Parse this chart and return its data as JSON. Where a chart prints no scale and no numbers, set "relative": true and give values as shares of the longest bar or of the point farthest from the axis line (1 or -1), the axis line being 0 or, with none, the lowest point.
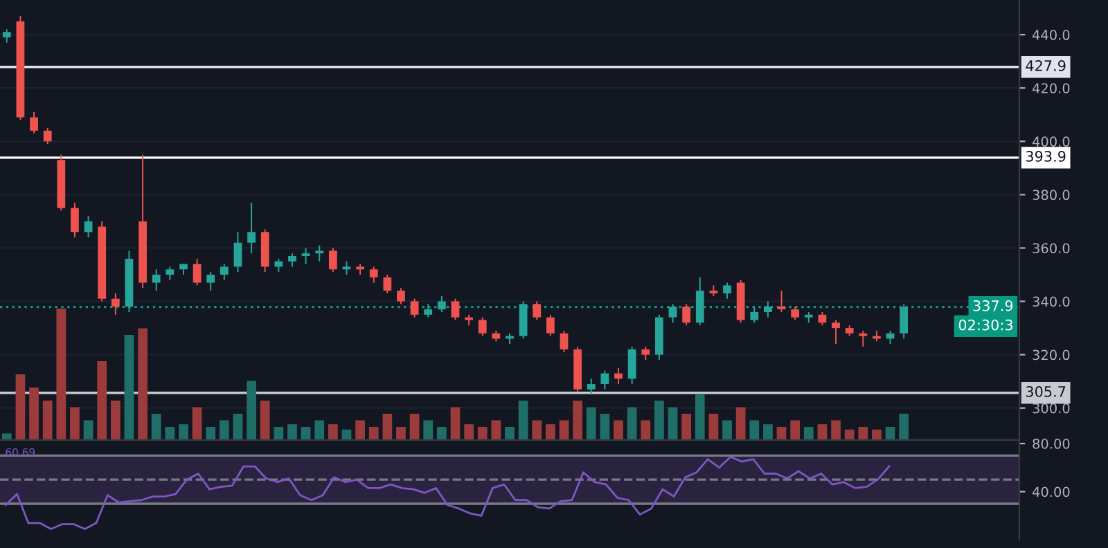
{
  "chart_data": [
    {
      "type": "candlestick",
      "categories": [
        null,
        null,
        null,
        null,
        null,
        null,
        null,
        null,
        null,
        null,
        null,
        null,
        null,
        null,
        null,
        null,
        null,
        null,
        null,
        null,
        null,
        null,
        null,
        null,
        null,
        null,
        null,
        null,
        null,
        null,
        null,
        null,
        null,
        null,
        null,
        null,
        null,
        null,
        null,
        null,
        null,
        null,
        null,
        null,
        null,
        null,
        null,
        null,
        null,
        null,
        null,
        null,
        null,
        null,
        null,
        null,
        null,
        null,
        null,
        null,
        null,
        null,
        null,
        null,
        null,
        null,
        null,
        null,
        null,
        null,
        null,
        null,
        null,
        null,
        null
      ],
      "ohlc": [
        [
          439,
          442,
          437,
          441
        ],
        [
          445,
          447,
          408,
          409
        ],
        [
          409,
          411,
          403,
          404
        ],
        [
          404,
          405,
          399,
          400
        ],
        [
          393,
          395,
          374,
          375
        ],
        [
          375,
          377,
          364,
          366
        ],
        [
          366,
          372,
          364,
          370
        ],
        [
          368,
          370,
          340,
          341
        ],
        [
          341,
          343,
          335,
          338
        ],
        [
          338,
          359,
          336,
          356
        ],
        [
          370,
          395,
          345,
          347
        ],
        [
          347,
          352,
          344,
          350
        ],
        [
          350,
          353,
          348,
          352
        ],
        [
          352,
          354,
          350,
          354
        ],
        [
          354,
          356,
          346,
          347
        ],
        [
          347,
          351,
          344,
          350
        ],
        [
          350,
          354,
          348,
          353
        ],
        [
          353,
          366,
          351,
          362
        ],
        [
          362,
          377,
          358,
          366
        ],
        [
          366,
          367,
          351,
          353
        ],
        [
          353,
          356,
          351,
          355
        ],
        [
          355,
          358,
          353,
          357
        ],
        [
          357,
          360,
          354,
          358
        ],
        [
          358,
          361,
          355,
          359
        ],
        [
          359,
          360,
          351,
          352
        ],
        [
          352,
          355,
          350,
          353
        ],
        [
          353,
          354,
          350,
          352
        ],
        [
          352,
          353,
          347,
          349
        ],
        [
          349,
          350,
          343,
          344
        ],
        [
          344,
          345,
          339,
          340
        ],
        [
          340,
          341,
          334,
          335
        ],
        [
          335,
          339,
          334,
          337
        ],
        [
          337,
          342,
          336,
          340
        ],
        [
          340,
          341,
          333,
          334
        ],
        [
          334,
          335,
          331,
          333
        ],
        [
          333,
          334,
          327,
          328
        ],
        [
          328,
          329,
          325,
          326
        ],
        [
          326,
          328,
          324,
          327
        ],
        [
          327,
          340,
          326,
          339
        ],
        [
          339,
          340,
          333,
          334
        ],
        [
          334,
          335,
          327,
          328
        ],
        [
          328,
          329,
          321,
          322
        ],
        [
          322,
          323,
          306,
          307
        ],
        [
          307,
          311,
          305,
          309
        ],
        [
          309,
          314,
          307,
          313
        ],
        [
          313,
          315,
          309,
          311
        ],
        [
          311,
          323,
          309,
          322
        ],
        [
          322,
          323,
          318,
          320
        ],
        [
          320,
          335,
          318,
          334
        ],
        [
          334,
          339,
          332,
          338
        ],
        [
          338,
          339,
          331,
          332
        ],
        [
          332,
          349,
          331,
          344
        ],
        [
          344,
          346,
          342,
          343
        ],
        [
          343,
          347,
          341,
          346
        ],
        [
          347,
          348,
          332,
          333
        ],
        [
          333,
          338,
          332,
          336
        ],
        [
          336,
          340,
          334,
          338
        ],
        [
          338,
          344,
          336,
          337
        ],
        [
          337,
          338,
          333,
          334
        ],
        [
          334,
          336,
          332,
          335
        ],
        [
          335,
          336,
          331,
          332
        ],
        [
          332,
          333,
          324,
          330
        ],
        [
          330,
          331,
          327,
          328
        ],
        [
          328,
          329,
          323,
          327
        ],
        [
          327,
          329,
          325,
          326
        ],
        [
          326,
          329,
          324,
          328
        ],
        [
          328,
          339,
          326,
          337.9
        ],
        null,
        null,
        null,
        null,
        null,
        null,
        null,
        null
      ],
      "colors": [
        "#26a69a",
        "#ef5350",
        "#ef5350",
        "#ef5350",
        "#ef5350",
        "#ef5350",
        "#26a69a",
        "#ef5350",
        "#ef5350",
        "#26a69a",
        "#ef5350",
        "#26a69a",
        "#26a69a",
        "#26a69a",
        "#ef5350",
        "#26a69a",
        "#26a69a",
        "#26a69a",
        "#26a69a",
        "#ef5350",
        "#26a69a",
        "#26a69a",
        "#26a69a",
        "#26a69a",
        "#ef5350",
        "#26a69a",
        "#ef5350",
        "#ef5350",
        "#ef5350",
        "#ef5350",
        "#ef5350",
        "#26a69a",
        "#26a69a",
        "#ef5350",
        "#ef5350",
        "#ef5350",
        "#ef5350",
        "#26a69a",
        "#26a69a",
        "#ef5350",
        "#ef5350",
        "#ef5350",
        "#ef5350",
        "#26a69a",
        "#26a69a",
        "#ef5350",
        "#26a69a",
        "#ef5350",
        "#26a69a",
        "#26a69a",
        "#ef5350",
        "#26a69a",
        "#ef5350",
        "#26a69a",
        "#ef5350",
        "#26a69a",
        "#26a69a",
        "#ef5350",
        "#ef5350",
        "#26a69a",
        "#ef5350",
        "#ef5350",
        "#ef5350",
        "#ef5350",
        "#ef5350",
        "#26a69a",
        "#26a69a",
        null,
        null,
        null,
        null,
        null,
        null,
        null,
        null
      ],
      "ylim": [
        288,
        453
      ],
      "yticks": [
        {
          "value": 300,
          "label": "300.0"
        },
        {
          "value": 320,
          "label": "320.0"
        },
        {
          "value": 340,
          "label": "340.0"
        },
        {
          "value": 360,
          "label": "360.0"
        },
        {
          "value": 380,
          "label": "380.0"
        },
        {
          "value": 400,
          "label": "400.0"
        },
        {
          "value": 420,
          "label": "420.0"
        },
        {
          "value": 440,
          "label": "440.0"
        }
      ],
      "ref_lines": [
        {
          "axis": "y",
          "value": 427.9,
          "label": "427.9",
          "color": "#e0e3eb"
        },
        {
          "axis": "y",
          "value": 393.9,
          "label": "393.9",
          "color": "#ffffff"
        },
        {
          "axis": "y",
          "value": 305.7,
          "label": "305.7",
          "color": "#c8cad0"
        },
        {
          "axis": "y",
          "value": 337.9,
          "label": "337.9",
          "color": "#089981",
          "line_style": "dotted"
        }
      ],
      "annotations": [
        "02:30:3"
      ],
      "tick_labels": "y",
      "grid": "y"
    },
    {
      "type": "bar",
      "relative": true,
      "categories": [
        null,
        null,
        null,
        null,
        null,
        null,
        null,
        null,
        null,
        null,
        null,
        null,
        null,
        null,
        null,
        null,
        null,
        null,
        null,
        null,
        null,
        null,
        null,
        null,
        null,
        null,
        null,
        null,
        null,
        null,
        null,
        null,
        null,
        null,
        null,
        null,
        null,
        null,
        null,
        null,
        null,
        null,
        null,
        null,
        null,
        null,
        null,
        null,
        null,
        null,
        null,
        null,
        null,
        null,
        null,
        null,
        null,
        null,
        null,
        null,
        null,
        null,
        null,
        null,
        null,
        null,
        null,
        null,
        null,
        null,
        null,
        null,
        null,
        null,
        null
      ],
      "values": [
        0.05,
        0.5,
        0.4,
        0.3,
        1.0,
        0.25,
        0.15,
        0.6,
        0.3,
        0.8,
        0.85,
        0.2,
        0.1,
        0.12,
        0.25,
        0.1,
        0.15,
        0.2,
        0.45,
        0.3,
        0.1,
        0.12,
        0.1,
        0.15,
        0.12,
        0.08,
        0.15,
        0.1,
        0.2,
        0.1,
        0.2,
        0.15,
        0.1,
        0.25,
        0.12,
        0.1,
        0.15,
        0.1,
        0.3,
        0.15,
        0.12,
        0.15,
        0.3,
        0.25,
        0.2,
        0.15,
        0.25,
        0.15,
        0.3,
        0.25,
        0.2,
        0.35,
        0.2,
        0.15,
        0.25,
        0.15,
        0.12,
        0.1,
        0.15,
        0.1,
        0.12,
        0.15,
        0.08,
        0.1,
        0.08,
        0.1,
        0.2,
        null,
        null,
        null,
        null,
        null,
        null,
        null,
        null
      ],
      "colors": [
        "#1f6e67",
        "#9b3b3b",
        "#9b3b3b",
        "#9b3b3b",
        "#9b3b3b",
        "#9b3b3b",
        "#1f6e67",
        "#9b3b3b",
        "#9b3b3b",
        "#1f6e67",
        "#9b3b3b",
        "#1f6e67",
        "#1f6e67",
        "#1f6e67",
        "#9b3b3b",
        "#1f6e67",
        "#1f6e67",
        "#1f6e67",
        "#1f6e67",
        "#9b3b3b",
        "#1f6e67",
        "#1f6e67",
        "#1f6e67",
        "#1f6e67",
        "#9b3b3b",
        "#1f6e67",
        "#9b3b3b",
        "#9b3b3b",
        "#9b3b3b",
        "#9b3b3b",
        "#9b3b3b",
        "#1f6e67",
        "#1f6e67",
        "#9b3b3b",
        "#9b3b3b",
        "#9b3b3b",
        "#9b3b3b",
        "#1f6e67",
        "#1f6e67",
        "#9b3b3b",
        "#9b3b3b",
        "#9b3b3b",
        "#9b3b3b",
        "#1f6e67",
        "#1f6e67",
        "#9b3b3b",
        "#1f6e67",
        "#9b3b3b",
        "#1f6e67",
        "#1f6e67",
        "#9b3b3b",
        "#1f6e67",
        "#9b3b3b",
        "#1f6e67",
        "#9b3b3b",
        "#1f6e67",
        "#1f6e67",
        "#9b3b3b",
        "#9b3b3b",
        "#1f6e67",
        "#9b3b3b",
        "#9b3b3b",
        "#9b3b3b",
        "#9b3b3b",
        "#9b3b3b",
        "#1f6e67",
        "#1f6e67",
        null,
        null,
        null,
        null,
        null,
        null,
        null,
        null
      ],
      "tick_labels": false
    },
    {
      "type": "line",
      "categories": [
        null,
        null,
        null,
        null,
        null,
        null,
        null,
        null,
        null,
        null,
        null,
        null,
        null,
        null,
        null,
        null,
        null,
        null,
        null,
        null,
        null,
        null,
        null,
        null,
        null,
        null,
        null,
        null,
        null,
        null,
        null,
        null,
        null,
        null,
        null,
        null,
        null,
        null,
        null,
        null,
        null,
        null,
        null,
        null,
        null,
        null,
        null,
        null,
        null,
        null,
        null,
        null,
        null,
        null,
        null,
        null,
        null,
        null,
        null,
        null,
        null,
        null,
        null,
        null,
        null,
        null,
        null,
        null,
        null,
        null,
        null,
        null,
        null,
        null,
        null,
        null,
        null,
        null,
        null,
        null,
        null,
        null,
        null,
        null,
        null,
        null,
        null,
        null,
        null,
        null
      ],
      "series": [
        {
          "color": "#7e57c2",
          "values": [
            29,
            38,
            14,
            14,
            9,
            13,
            13,
            9,
            14,
            37,
            31,
            32,
            33,
            36,
            36,
            38,
            50,
            55,
            42,
            44,
            45,
            61,
            61,
            51,
            48,
            51,
            37,
            33,
            37,
            52,
            48,
            50,
            43,
            43,
            46,
            43,
            42,
            39,
            43,
            29,
            26,
            22,
            20,
            43,
            46,
            33,
            33,
            27,
            26,
            32,
            33,
            56,
            48,
            46,
            35,
            33,
            21,
            26,
            42,
            36,
            52,
            56,
            67,
            60,
            69,
            65,
            67,
            55,
            55,
            51,
            57,
            51,
            55,
            46,
            48,
            43,
            44,
            50,
            61,
            null,
            null,
            null,
            null,
            null,
            null,
            null,
            null,
            null,
            null,
            null
          ]
        }
      ],
      "ylim": [
        0,
        82
      ],
      "yticks": [
        {
          "value": 80,
          "label": "80.00"
        },
        {
          "value": 40,
          "label": "40.00"
        }
      ],
      "ref_lines": [
        {
          "axis": "y",
          "value": 70,
          "color": "#787b86"
        },
        {
          "axis": "y",
          "value": 50,
          "color": "#787b86",
          "line_style": "dashed"
        },
        {
          "axis": "y",
          "value": 30,
          "color": "#787b86"
        }
      ],
      "bands": [
        {
          "axis": "y",
          "from": 30,
          "to": 70,
          "color": "#2a2340"
        }
      ],
      "annotations": [
        "60.69"
      ],
      "tick_labels": "y",
      "grid": false
    }
  ]
}
